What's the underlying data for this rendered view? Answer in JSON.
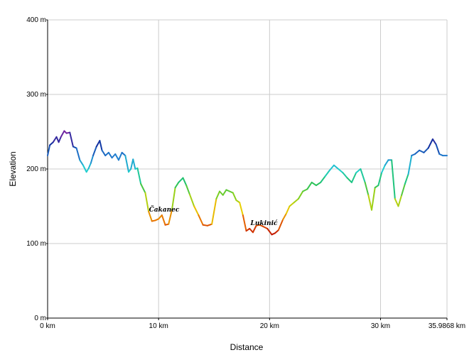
{
  "chart_data": {
    "type": "line",
    "xlabel": "Distance",
    "ylabel": "Elevation",
    "xlim": [
      0,
      35.9868
    ],
    "ylim": [
      0,
      400
    ],
    "grid": true,
    "x_ticks": [
      {
        "value": 0,
        "label": "0 km"
      },
      {
        "value": 10,
        "label": "10 km"
      },
      {
        "value": 20,
        "label": "20 km"
      },
      {
        "value": 30,
        "label": "30 km"
      },
      {
        "value": 35.9868,
        "label": "35.9868 km"
      }
    ],
    "y_ticks": [
      {
        "value": 0,
        "label": "0 m"
      },
      {
        "value": 100,
        "label": "100 m"
      },
      {
        "value": 200,
        "label": "200 m"
      },
      {
        "value": 300,
        "label": "300 m"
      },
      {
        "value": 400,
        "label": "400 m"
      }
    ],
    "color_scale": [
      "#c01000",
      "#e86a00",
      "#e8d000",
      "#80d020",
      "#20c060",
      "#20d0d0",
      "#2080d0",
      "#1030a0",
      "#8020a0"
    ],
    "annotations": [
      {
        "text": "Čakanec",
        "x": 10.5,
        "y": 143
      },
      {
        "text": "Lukinić",
        "x": 19.5,
        "y": 125
      }
    ],
    "x": [
      0,
      0.2,
      0.5,
      0.8,
      1.0,
      1.2,
      1.5,
      1.7,
      2.0,
      2.3,
      2.6,
      2.9,
      3.2,
      3.5,
      3.7,
      3.9,
      4.1,
      4.4,
      4.7,
      4.9,
      5.2,
      5.5,
      5.8,
      6.1,
      6.4,
      6.7,
      7.0,
      7.3,
      7.5,
      7.7,
      7.9,
      8.1,
      8.4,
      8.8,
      9.1,
      9.4,
      9.7,
      10.0,
      10.3,
      10.6,
      10.9,
      11.2,
      11.5,
      11.8,
      12.2,
      12.5,
      12.8,
      13.2,
      13.6,
      14.0,
      14.4,
      14.8,
      15.2,
      15.5,
      15.8,
      16.1,
      16.4,
      16.7,
      17.0,
      17.3,
      17.6,
      17.9,
      18.2,
      18.5,
      18.8,
      19.1,
      19.4,
      19.8,
      20.2,
      20.5,
      20.8,
      21.2,
      21.5,
      21.8,
      22.2,
      22.6,
      23.0,
      23.4,
      23.8,
      24.2,
      24.6,
      25.0,
      25.4,
      25.8,
      26.2,
      26.6,
      27.0,
      27.4,
      27.8,
      28.2,
      28.6,
      28.9,
      29.2,
      29.5,
      29.8,
      30.1,
      30.4,
      30.7,
      31.0,
      31.3,
      31.6,
      31.9,
      32.2,
      32.5,
      32.8,
      33.1,
      33.5,
      33.9,
      34.3,
      34.7,
      35.0,
      35.3,
      35.6,
      35.9868
    ],
    "values": [
      218,
      232,
      236,
      243,
      236,
      243,
      251,
      248,
      249,
      230,
      228,
      212,
      205,
      196,
      201,
      208,
      218,
      230,
      238,
      225,
      218,
      222,
      215,
      220,
      212,
      222,
      218,
      196,
      200,
      213,
      200,
      201,
      180,
      168,
      143,
      130,
      131,
      133,
      138,
      125,
      126,
      145,
      175,
      182,
      188,
      178,
      166,
      150,
      138,
      125,
      124,
      126,
      160,
      170,
      165,
      172,
      170,
      168,
      158,
      155,
      138,
      117,
      120,
      115,
      124,
      125,
      123,
      120,
      112,
      114,
      118,
      132,
      140,
      150,
      155,
      160,
      170,
      173,
      182,
      178,
      182,
      190,
      198,
      205,
      200,
      195,
      188,
      182,
      195,
      200,
      182,
      165,
      145,
      175,
      178,
      195,
      205,
      212,
      212,
      160,
      150,
      165,
      180,
      193,
      218,
      220,
      225,
      222,
      228,
      240,
      233,
      220,
      218,
      218
    ]
  }
}
